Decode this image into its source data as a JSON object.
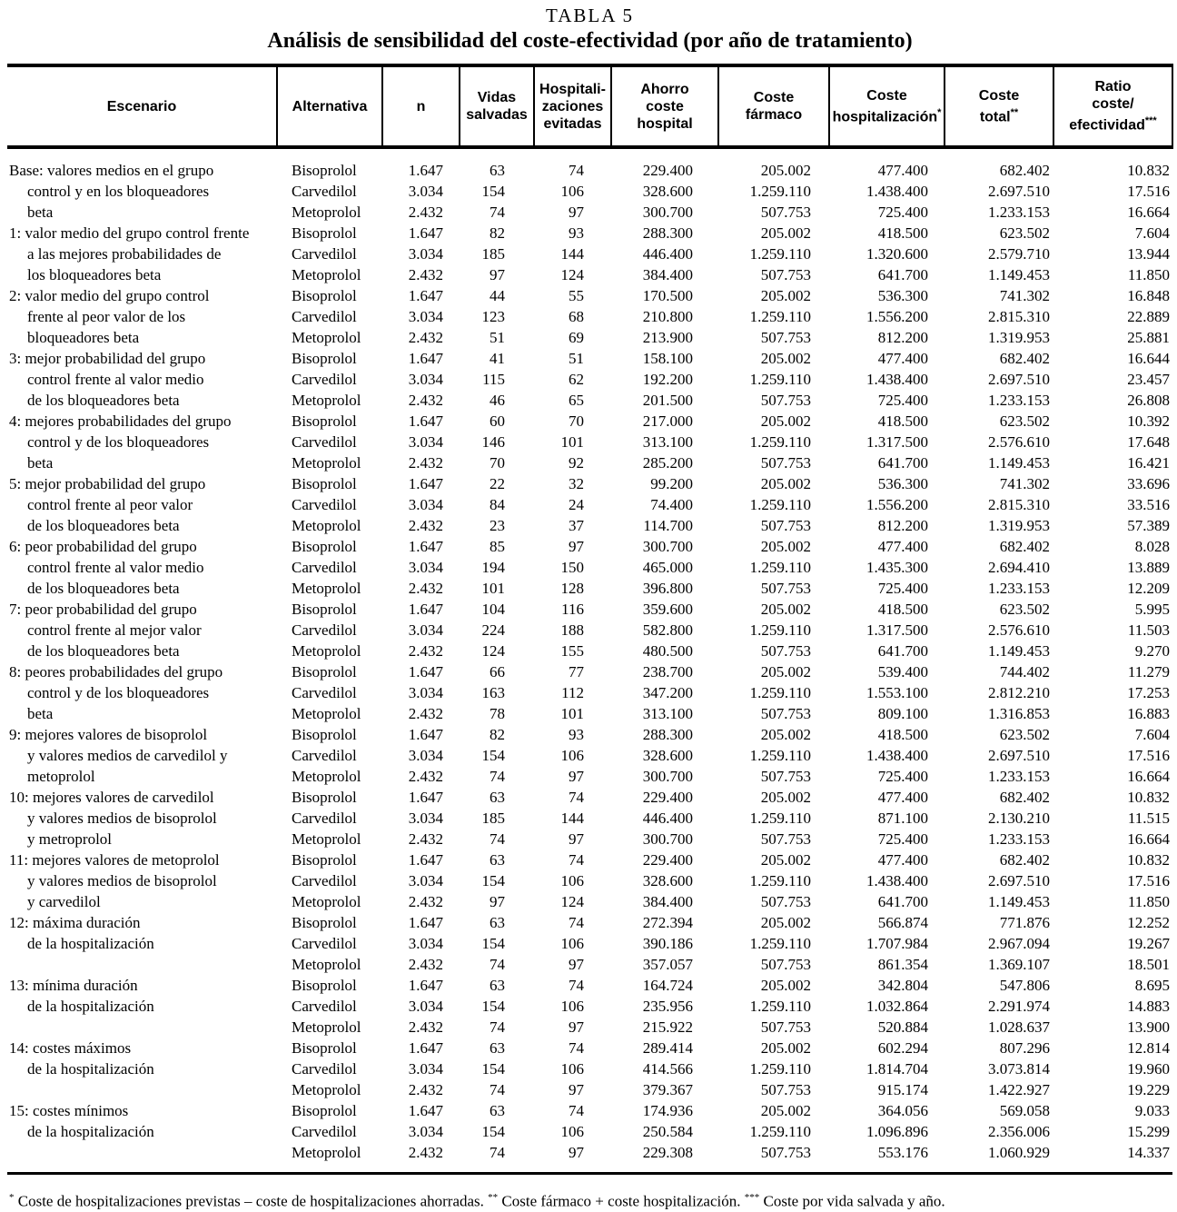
{
  "table": {
    "kicker": "TABLA 5",
    "title": "Análisis de sensibilidad del coste-efectividad (por año de tratamiento)",
    "columns": [
      {
        "id": "escenario",
        "lines": [
          "Escenario"
        ],
        "sup": ""
      },
      {
        "id": "alternativa",
        "lines": [
          "Alternativa"
        ],
        "sup": ""
      },
      {
        "id": "n",
        "lines": [
          "n"
        ],
        "sup": ""
      },
      {
        "id": "vidas",
        "lines": [
          "Vidas",
          "salvadas"
        ],
        "sup": ""
      },
      {
        "id": "hospitalizaciones",
        "lines": [
          "Hospitali-",
          "zaciones",
          "evitadas"
        ],
        "sup": ""
      },
      {
        "id": "ahorro",
        "lines": [
          "Ahorro",
          "coste",
          "hospital"
        ],
        "sup": ""
      },
      {
        "id": "farmaco",
        "lines": [
          "Coste",
          "fármaco"
        ],
        "sup": ""
      },
      {
        "id": "coste_hosp",
        "lines": [
          "Coste",
          "hospitalización"
        ],
        "sup": "*"
      },
      {
        "id": "coste_total",
        "lines": [
          "Coste",
          "total"
        ],
        "sup": "**"
      },
      {
        "id": "ratio",
        "lines": [
          "Ratio",
          "coste/",
          "efectividad"
        ],
        "sup": "***"
      }
    ],
    "groups": [
      {
        "label_lines": [
          "Base: valores medios en el grupo",
          "control y en los bloqueadores",
          "beta"
        ],
        "rows": [
          [
            "Bisoprolol",
            "1.647",
            "63",
            "74",
            "229.400",
            "205.002",
            "477.400",
            "682.402",
            "10.832"
          ],
          [
            "Carvedilol",
            "3.034",
            "154",
            "106",
            "328.600",
            "1.259.110",
            "1.438.400",
            "2.697.510",
            "17.516"
          ],
          [
            "Metoprolol",
            "2.432",
            "74",
            "97",
            "300.700",
            "507.753",
            "725.400",
            "1.233.153",
            "16.664"
          ]
        ]
      },
      {
        "label_lines": [
          "1: valor medio del grupo control frente",
          "a las mejores probabilidades de",
          "los bloqueadores beta"
        ],
        "rows": [
          [
            "Bisoprolol",
            "1.647",
            "82",
            "93",
            "288.300",
            "205.002",
            "418.500",
            "623.502",
            "7.604"
          ],
          [
            "Carvedilol",
            "3.034",
            "185",
            "144",
            "446.400",
            "1.259.110",
            "1.320.600",
            "2.579.710",
            "13.944"
          ],
          [
            "Metoprolol",
            "2.432",
            "97",
            "124",
            "384.400",
            "507.753",
            "641.700",
            "1.149.453",
            "11.850"
          ]
        ]
      },
      {
        "label_lines": [
          "2: valor medio del grupo control",
          "frente al peor valor de los",
          "bloqueadores beta"
        ],
        "rows": [
          [
            "Bisoprolol",
            "1.647",
            "44",
            "55",
            "170.500",
            "205.002",
            "536.300",
            "741.302",
            "16.848"
          ],
          [
            "Carvedilol",
            "3.034",
            "123",
            "68",
            "210.800",
            "1.259.110",
            "1.556.200",
            "2.815.310",
            "22.889"
          ],
          [
            "Metoprolol",
            "2.432",
            "51",
            "69",
            "213.900",
            "507.753",
            "812.200",
            "1.319.953",
            "25.881"
          ]
        ]
      },
      {
        "label_lines": [
          "3: mejor probabilidad del grupo",
          "control frente al valor medio",
          "de los bloqueadores beta"
        ],
        "rows": [
          [
            "Bisoprolol",
            "1.647",
            "41",
            "51",
            "158.100",
            "205.002",
            "477.400",
            "682.402",
            "16.644"
          ],
          [
            "Carvedilol",
            "3.034",
            "115",
            "62",
            "192.200",
            "1.259.110",
            "1.438.400",
            "2.697.510",
            "23.457"
          ],
          [
            "Metoprolol",
            "2.432",
            "46",
            "65",
            "201.500",
            "507.753",
            "725.400",
            "1.233.153",
            "26.808"
          ]
        ]
      },
      {
        "label_lines": [
          "4: mejores probabilidades del grupo",
          "control y de los bloqueadores",
          "beta"
        ],
        "rows": [
          [
            "Bisoprolol",
            "1.647",
            "60",
            "70",
            "217.000",
            "205.002",
            "418.500",
            "623.502",
            "10.392"
          ],
          [
            "Carvedilol",
            "3.034",
            "146",
            "101",
            "313.100",
            "1.259.110",
            "1.317.500",
            "2.576.610",
            "17.648"
          ],
          [
            "Metoprolol",
            "2.432",
            "70",
            "92",
            "285.200",
            "507.753",
            "641.700",
            "1.149.453",
            "16.421"
          ]
        ]
      },
      {
        "label_lines": [
          "5: mejor probabilidad del grupo",
          "control frente al peor valor",
          "de los bloqueadores beta"
        ],
        "rows": [
          [
            "Bisoprolol",
            "1.647",
            "22",
            "32",
            "99.200",
            "205.002",
            "536.300",
            "741.302",
            "33.696"
          ],
          [
            "Carvedilol",
            "3.034",
            "84",
            "24",
            "74.400",
            "1.259.110",
            "1.556.200",
            "2.815.310",
            "33.516"
          ],
          [
            "Metoprolol",
            "2.432",
            "23",
            "37",
            "114.700",
            "507.753",
            "812.200",
            "1.319.953",
            "57.389"
          ]
        ]
      },
      {
        "label_lines": [
          "6: peor probabilidad del grupo",
          "control frente al valor medio",
          "de los bloqueadores beta"
        ],
        "rows": [
          [
            "Bisoprolol",
            "1.647",
            "85",
            "97",
            "300.700",
            "205.002",
            "477.400",
            "682.402",
            "8.028"
          ],
          [
            "Carvedilol",
            "3.034",
            "194",
            "150",
            "465.000",
            "1.259.110",
            "1.435.300",
            "2.694.410",
            "13.889"
          ],
          [
            "Metoprolol",
            "2.432",
            "101",
            "128",
            "396.800",
            "507.753",
            "725.400",
            "1.233.153",
            "12.209"
          ]
        ]
      },
      {
        "label_lines": [
          "7: peor probabilidad del grupo",
          "control frente al mejor valor",
          "de los bloqueadores beta"
        ],
        "rows": [
          [
            "Bisoprolol",
            "1.647",
            "104",
            "116",
            "359.600",
            "205.002",
            "418.500",
            "623.502",
            "5.995"
          ],
          [
            "Carvedilol",
            "3.034",
            "224",
            "188",
            "582.800",
            "1.259.110",
            "1.317.500",
            "2.576.610",
            "11.503"
          ],
          [
            "Metoprolol",
            "2.432",
            "124",
            "155",
            "480.500",
            "507.753",
            "641.700",
            "1.149.453",
            "9.270"
          ]
        ]
      },
      {
        "label_lines": [
          "8: peores probabilidades del grupo",
          "control y de los bloqueadores",
          "beta"
        ],
        "rows": [
          [
            "Bisoprolol",
            "1.647",
            "66",
            "77",
            "238.700",
            "205.002",
            "539.400",
            "744.402",
            "11.279"
          ],
          [
            "Carvedilol",
            "3.034",
            "163",
            "112",
            "347.200",
            "1.259.110",
            "1.553.100",
            "2.812.210",
            "17.253"
          ],
          [
            "Metoprolol",
            "2.432",
            "78",
            "101",
            "313.100",
            "507.753",
            "809.100",
            "1.316.853",
            "16.883"
          ]
        ]
      },
      {
        "label_lines": [
          "9: mejores valores de bisoprolol",
          "y valores medios de carvedilol y",
          "metoprolol"
        ],
        "rows": [
          [
            "Bisoprolol",
            "1.647",
            "82",
            "93",
            "288.300",
            "205.002",
            "418.500",
            "623.502",
            "7.604"
          ],
          [
            "Carvedilol",
            "3.034",
            "154",
            "106",
            "328.600",
            "1.259.110",
            "1.438.400",
            "2.697.510",
            "17.516"
          ],
          [
            "Metoprolol",
            "2.432",
            "74",
            "97",
            "300.700",
            "507.753",
            "725.400",
            "1.233.153",
            "16.664"
          ]
        ]
      },
      {
        "label_lines": [
          "10: mejores valores de carvedilol",
          "y valores medios de bisoprolol",
          "y metroprolol"
        ],
        "rows": [
          [
            "Bisoprolol",
            "1.647",
            "63",
            "74",
            "229.400",
            "205.002",
            "477.400",
            "682.402",
            "10.832"
          ],
          [
            "Carvedilol",
            "3.034",
            "185",
            "144",
            "446.400",
            "1.259.110",
            "871.100",
            "2.130.210",
            "11.515"
          ],
          [
            "Metoprolol",
            "2.432",
            "74",
            "97",
            "300.700",
            "507.753",
            "725.400",
            "1.233.153",
            "16.664"
          ]
        ]
      },
      {
        "label_lines": [
          "11: mejores valores de metoprolol",
          "y valores medios de bisoprolol",
          "y carvedilol"
        ],
        "rows": [
          [
            "Bisoprolol",
            "1.647",
            "63",
            "74",
            "229.400",
            "205.002",
            "477.400",
            "682.402",
            "10.832"
          ],
          [
            "Carvedilol",
            "3.034",
            "154",
            "106",
            "328.600",
            "1.259.110",
            "1.438.400",
            "2.697.510",
            "17.516"
          ],
          [
            "Metoprolol",
            "2.432",
            "97",
            "124",
            "384.400",
            "507.753",
            "641.700",
            "1.149.453",
            "11.850"
          ]
        ]
      },
      {
        "label_lines": [
          "12: máxima duración",
          "de la hospitalización",
          ""
        ],
        "rows": [
          [
            "Bisoprolol",
            "1.647",
            "63",
            "74",
            "272.394",
            "205.002",
            "566.874",
            "771.876",
            "12.252"
          ],
          [
            "Carvedilol",
            "3.034",
            "154",
            "106",
            "390.186",
            "1.259.110",
            "1.707.984",
            "2.967.094",
            "19.267"
          ],
          [
            "Metoprolol",
            "2.432",
            "74",
            "97",
            "357.057",
            "507.753",
            "861.354",
            "1.369.107",
            "18.501"
          ]
        ]
      },
      {
        "label_lines": [
          "13: mínima duración",
          "de la hospitalización",
          ""
        ],
        "rows": [
          [
            "Bisoprolol",
            "1.647",
            "63",
            "74",
            "164.724",
            "205.002",
            "342.804",
            "547.806",
            "8.695"
          ],
          [
            "Carvedilol",
            "3.034",
            "154",
            "106",
            "235.956",
            "1.259.110",
            "1.032.864",
            "2.291.974",
            "14.883"
          ],
          [
            "Metoprolol",
            "2.432",
            "74",
            "97",
            "215.922",
            "507.753",
            "520.884",
            "1.028.637",
            "13.900"
          ]
        ]
      },
      {
        "label_lines": [
          "14: costes máximos",
          "de la hospitalización",
          ""
        ],
        "rows": [
          [
            "Bisoprolol",
            "1.647",
            "63",
            "74",
            "289.414",
            "205.002",
            "602.294",
            "807.296",
            "12.814"
          ],
          [
            "Carvedilol",
            "3.034",
            "154",
            "106",
            "414.566",
            "1.259.110",
            "1.814.704",
            "3.073.814",
            "19.960"
          ],
          [
            "Metoprolol",
            "2.432",
            "74",
            "97",
            "379.367",
            "507.753",
            "915.174",
            "1.422.927",
            "19.229"
          ]
        ]
      },
      {
        "label_lines": [
          "15: costes mínimos",
          "de la hospitalización",
          ""
        ],
        "rows": [
          [
            "Bisoprolol",
            "1.647",
            "63",
            "74",
            "174.936",
            "205.002",
            "364.056",
            "569.058",
            "9.033"
          ],
          [
            "Carvedilol",
            "3.034",
            "154",
            "106",
            "250.584",
            "1.259.110",
            "1.096.896",
            "2.356.006",
            "15.299"
          ],
          [
            "Metoprolol",
            "2.432",
            "74",
            "97",
            "229.308",
            "507.753",
            "553.176",
            "1.060.929",
            "14.337"
          ]
        ]
      }
    ],
    "footnotes": [
      {
        "sup": "*",
        "text": "Coste de hospitalizaciones previstas – coste de hospitalizaciones ahorradas."
      },
      {
        "sup": "**",
        "text": "Coste fármaco + coste hospitalización."
      },
      {
        "sup": "***",
        "text": "Coste por vida salvada y año."
      }
    ]
  }
}
